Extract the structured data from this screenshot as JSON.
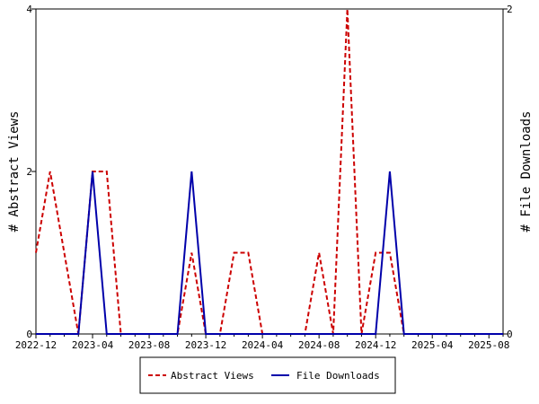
{
  "chart_data": {
    "type": "line",
    "x_labels": [
      "2022-12",
      "2023-01",
      "2023-02",
      "2023-03",
      "2023-04",
      "2023-05",
      "2023-06",
      "2023-07",
      "2023-08",
      "2023-09",
      "2023-10",
      "2023-11",
      "2023-12",
      "2024-01",
      "2024-02",
      "2024-03",
      "2024-04",
      "2024-05",
      "2024-06",
      "2024-07",
      "2024-08",
      "2024-09",
      "2024-10",
      "2024-11",
      "2024-12",
      "2025-01",
      "2025-02",
      "2025-03",
      "2025-04",
      "2025-05",
      "2025-06",
      "2025-07",
      "2025-08",
      "2025-09"
    ],
    "x_tick_labels": [
      "2022-12",
      "2023-04",
      "2023-08",
      "2023-12",
      "2024-04",
      "2024-08",
      "2024-12",
      "2025-04",
      "2025-08"
    ],
    "y_left": {
      "label": "# Abstract Views",
      "ticks": [
        "0",
        "2",
        "4"
      ],
      "range": [
        0,
        4
      ]
    },
    "y_right": {
      "label": "# File Downloads",
      "ticks": [
        "0",
        "2"
      ],
      "range": [
        0,
        2
      ]
    },
    "series": [
      {
        "name": "Abstract Views",
        "axis": "left",
        "color": "#cc0000",
        "dash": true,
        "values": [
          1,
          2,
          1,
          0,
          2,
          2,
          0,
          0,
          0,
          0,
          0,
          1,
          0,
          0,
          1,
          1,
          0,
          0,
          0,
          0,
          1,
          0,
          4,
          0,
          1,
          1,
          0,
          0,
          0,
          0,
          0,
          0,
          0,
          0
        ]
      },
      {
        "name": "File Downloads",
        "axis": "right",
        "color": "#0000aa",
        "dash": false,
        "values": [
          0,
          0,
          0,
          0,
          1,
          0,
          0,
          0,
          0,
          0,
          0,
          1,
          0,
          0,
          0,
          0,
          0,
          0,
          0,
          0,
          0,
          0,
          0,
          0,
          0,
          1,
          0,
          0,
          0,
          0,
          0,
          0,
          0,
          0
        ]
      }
    ],
    "legend": {
      "position": "bottom",
      "items": [
        "Abstract Views",
        "File Downloads"
      ]
    }
  }
}
